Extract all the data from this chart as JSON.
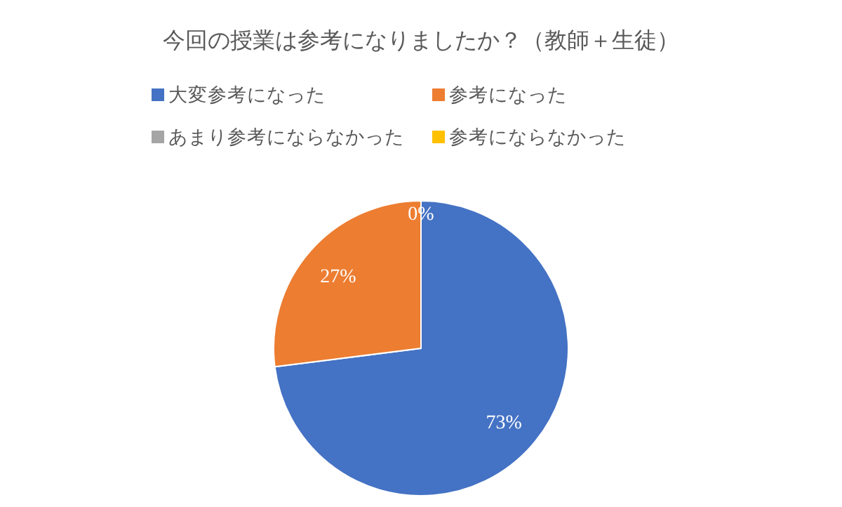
{
  "chart_data": {
    "type": "pie",
    "title": "今回の授業は参考になりましたか？（教師＋生徒）",
    "categories": [
      "大変参考になった",
      "参考になった",
      "あまり参考にならなかった",
      "参考にならなかった"
    ],
    "values": [
      73,
      27,
      0,
      0
    ],
    "colors": [
      "#4472c4",
      "#ed7d31",
      "#a5a5a5",
      "#ffc000"
    ],
    "value_labels": [
      "73%",
      "27%",
      "0%",
      null
    ],
    "legend": "top"
  }
}
